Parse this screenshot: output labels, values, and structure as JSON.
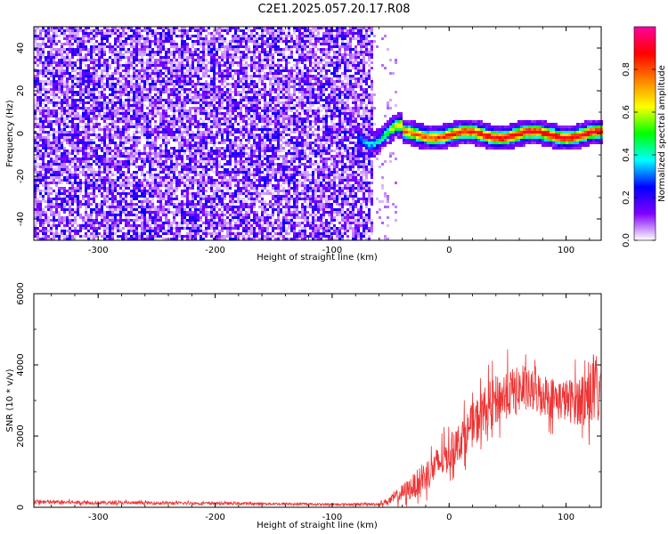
{
  "figure_title": "C2E1.2025.057.20.17.R08",
  "chart_data": [
    {
      "type": "heatmap",
      "title": "C2E1.2025.057.20.17.R08",
      "xlabel": "Height of straight line (km)",
      "ylabel": "Frequency (Hz)",
      "xlim": [
        -355,
        130
      ],
      "ylim": [
        -50,
        50
      ],
      "x_ticks": [
        -300,
        -200,
        -100,
        0,
        100
      ],
      "x_tick_labels": [
        "-300",
        "-200",
        "-100",
        "0",
        "100"
      ],
      "y_ticks": [
        40,
        20,
        0,
        -20,
        -40
      ],
      "y_tick_labels": [
        "40",
        "20",
        "0",
        "-20",
        "-40"
      ],
      "colorbar": {
        "label": "Normalized spectral amplitude",
        "range": [
          0,
          1
        ],
        "ticks": [
          0.0,
          0.2,
          0.4,
          0.6,
          0.8
        ],
        "tick_labels": [
          "0.0",
          "0.2",
          "0.4",
          "0.6",
          "0.8"
        ],
        "colors": [
          "#ffffff",
          "#8000ff",
          "#0000ff",
          "#00ffff",
          "#00ff00",
          "#ffff00",
          "#ff8000",
          "#ff0000",
          "#ff00a0"
        ]
      },
      "noise_region_x": [
        -355,
        -65
      ],
      "signal_band": {
        "x_range": [
          -80,
          130
        ],
        "center_hz": 0,
        "peak_amplitude": 0.9,
        "description_values": [
          {
            "x": -80,
            "amplitude": 0.3
          },
          {
            "x": -60,
            "amplitude": 0.4
          },
          {
            "x": -40,
            "amplitude": 0.75
          },
          {
            "x": 0,
            "amplitude": 0.85
          },
          {
            "x": 50,
            "amplitude": 0.9
          },
          {
            "x": 100,
            "amplitude": 0.9
          },
          {
            "x": 130,
            "amplitude": 0.9
          }
        ]
      }
    },
    {
      "type": "line",
      "xlabel": "Height of straight line (km)",
      "ylabel": "SNR (10 * v/v)",
      "xlim": [
        -355,
        130
      ],
      "ylim": [
        0,
        6000
      ],
      "x_ticks": [
        -300,
        -200,
        -100,
        0,
        100
      ],
      "x_tick_labels": [
        "-300",
        "-200",
        "-100",
        "0",
        "100"
      ],
      "y_ticks": [
        0,
        2000,
        4000,
        6000
      ],
      "y_tick_labels": [
        "0",
        "2000",
        "4000",
        "6000"
      ],
      "color": "#ee3333",
      "series": [
        {
          "x": [
            -355,
            -300,
            -250,
            -200,
            -150,
            -100,
            -60,
            -50,
            -40,
            -30,
            -20,
            -10,
            0,
            10,
            20,
            30,
            40,
            50,
            60,
            70,
            80,
            90,
            100,
            110,
            120,
            130
          ],
          "y": [
            150,
            130,
            120,
            110,
            100,
            80,
            90,
            200,
            400,
            600,
            900,
            1200,
            1500,
            1900,
            2300,
            2700,
            3000,
            3200,
            3300,
            3250,
            3200,
            3050,
            3000,
            3000,
            3200,
            3300
          ],
          "noise": [
            60,
            50,
            45,
            40,
            35,
            30,
            40,
            120,
            250,
            350,
            450,
            500,
            500,
            550,
            600,
            700,
            700,
            700,
            650,
            600,
            600,
            600,
            600,
            700,
            900,
            1200
          ]
        }
      ]
    }
  ]
}
